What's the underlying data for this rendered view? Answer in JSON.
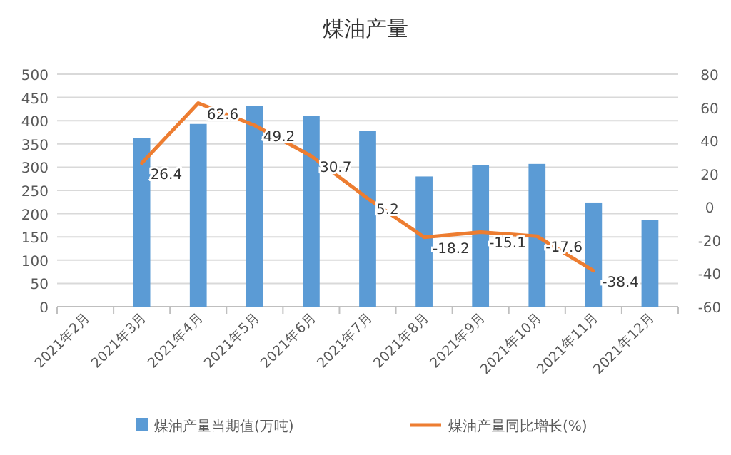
{
  "chart_data": {
    "type": "bar",
    "title": "煤油产量",
    "categories": [
      "2021年2月",
      "2021年3月",
      "2021年4月",
      "2021年5月",
      "2021年6月",
      "2021年7月",
      "2021年8月",
      "2021年9月",
      "2021年10月",
      "2021年11月",
      "2021年12月"
    ],
    "series": [
      {
        "name": "煤油产量当期值(万吨)",
        "color": "#5b9bd5",
        "values": [
          null,
          363,
          393,
          431,
          410,
          378,
          280,
          304,
          307,
          224,
          187
        ]
      },
      {
        "name": "煤油产量同比增长(%)",
        "type": "line",
        "axis": "y2",
        "color": "#ed7d31",
        "values": [
          null,
          26.4,
          62.6,
          49.2,
          30.7,
          5.2,
          -18.2,
          -15.1,
          -17.6,
          -38.4,
          null
        ],
        "value_labels": [
          null,
          "26.4",
          "62.6",
          "49.2",
          "30.7",
          "5.2",
          "-18.2",
          "-15.1",
          "-17.6",
          "-38.4",
          null
        ]
      }
    ],
    "ylim": [
      0,
      500
    ],
    "yticks": [
      0,
      50,
      100,
      150,
      200,
      250,
      300,
      350,
      400,
      450,
      500
    ],
    "y2lim": [
      -60,
      80
    ],
    "y2ticks": [
      -60,
      -40,
      -20,
      0,
      20,
      40,
      60,
      80
    ],
    "grid": "y",
    "legend": "bottom"
  }
}
